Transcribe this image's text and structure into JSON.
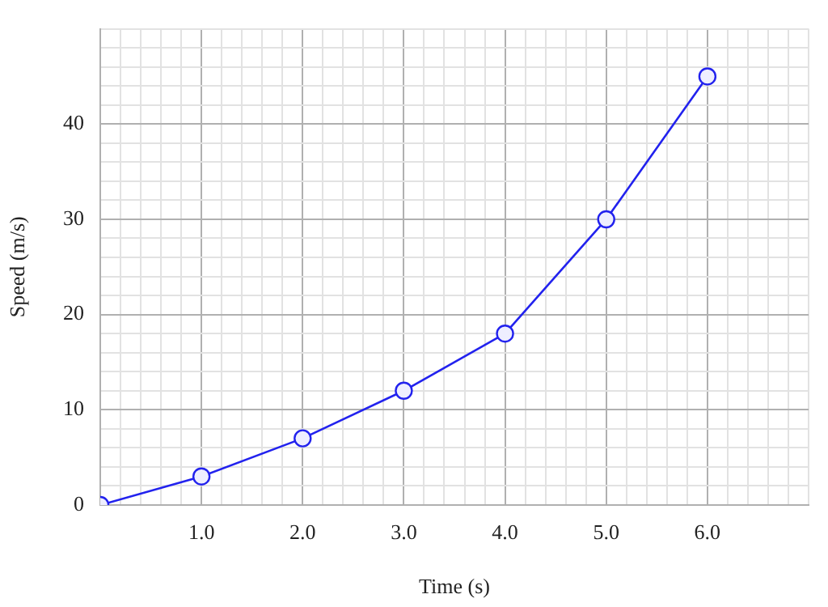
{
  "chart_data": {
    "type": "line",
    "xlabel": "Time (s)",
    "ylabel": "Speed (m/s)",
    "x": [
      0,
      1,
      2,
      3,
      4,
      5,
      6
    ],
    "series": [
      {
        "color": "#2222ee",
        "values": [
          0,
          3,
          7,
          12,
          18,
          30,
          45
        ]
      }
    ],
    "marker": "circle",
    "line_style": "solid",
    "grid": true,
    "legend": false,
    "xlim": [
      0,
      7
    ],
    "ylim": [
      0,
      50
    ],
    "xticks": [
      {
        "value": 0,
        "label": null
      },
      {
        "value": 0.2,
        "label": null
      },
      {
        "value": 0.4,
        "label": null
      },
      {
        "value": 0.6,
        "label": null
      },
      {
        "value": 0.8,
        "label": null
      },
      {
        "value": 1,
        "label": "1.0"
      },
      {
        "value": 1.2,
        "label": null
      },
      {
        "value": 1.4,
        "label": null
      },
      {
        "value": 1.6,
        "label": null
      },
      {
        "value": 1.8,
        "label": null
      },
      {
        "value": 2,
        "label": "2.0"
      },
      {
        "value": 2.2,
        "label": null
      },
      {
        "value": 2.4,
        "label": null
      },
      {
        "value": 2.6,
        "label": null
      },
      {
        "value": 2.8,
        "label": null
      },
      {
        "value": 3,
        "label": "3.0"
      },
      {
        "value": 3.2,
        "label": null
      },
      {
        "value": 3.4,
        "label": null
      },
      {
        "value": 3.6,
        "label": null
      },
      {
        "value": 3.8,
        "label": null
      },
      {
        "value": 4,
        "label": "4.0"
      },
      {
        "value": 4.2,
        "label": null
      },
      {
        "value": 4.4,
        "label": null
      },
      {
        "value": 4.6,
        "label": null
      },
      {
        "value": 4.8,
        "label": null
      },
      {
        "value": 5,
        "label": "5.0"
      },
      {
        "value": 5.2,
        "label": null
      },
      {
        "value": 5.4,
        "label": null
      },
      {
        "value": 5.6,
        "label": null
      },
      {
        "value": 5.8,
        "label": null
      },
      {
        "value": 6,
        "label": "6.0"
      },
      {
        "value": 6.2,
        "label": null
      },
      {
        "value": 6.4,
        "label": null
      },
      {
        "value": 6.6,
        "label": null
      },
      {
        "value": 6.8,
        "label": null
      },
      {
        "value": 7,
        "label": null
      }
    ],
    "yticks": [
      0,
      {
        "value": 2,
        "label": null
      },
      {
        "value": 4,
        "label": null
      },
      {
        "value": 6,
        "label": null
      },
      {
        "value": 8,
        "label": null
      },
      10,
      {
        "value": 12,
        "label": null
      },
      {
        "value": 14,
        "label": null
      },
      {
        "value": 16,
        "label": null
      },
      {
        "value": 18,
        "label": null
      },
      20,
      {
        "value": 22,
        "label": null
      },
      {
        "value": 24,
        "label": null
      },
      {
        "value": 26,
        "label": null
      },
      {
        "value": 28,
        "label": null
      },
      30,
      {
        "value": 32,
        "label": null
      },
      {
        "value": 34,
        "label": null
      },
      {
        "value": 36,
        "label": null
      },
      {
        "value": 38,
        "label": null
      },
      40,
      {
        "value": 42,
        "label": null
      },
      {
        "value": 44,
        "label": null
      },
      {
        "value": 46,
        "label": null
      },
      {
        "value": 48,
        "label": null
      },
      {
        "value": 50,
        "label": null
      }
    ]
  }
}
